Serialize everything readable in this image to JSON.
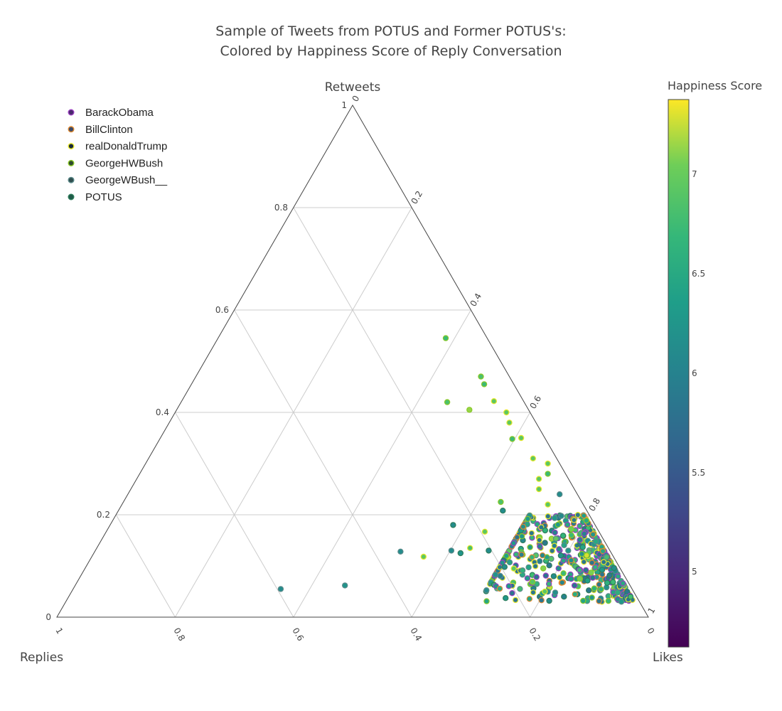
{
  "chart_data": {
    "type": "scatter",
    "subtype": "ternary",
    "title": [
      "Sample of Tweets from POTUS and Former POTUS's:",
      "Colored by Happiness Score of Reply Conversation"
    ],
    "axes": {
      "a": {
        "title": "Retweets",
        "ticks": [
          "0",
          "0.2",
          "0.4",
          "0.6",
          "0.8",
          "1"
        ]
      },
      "b": {
        "title": "Replies",
        "ticks": [
          "0",
          "0.2",
          "0.4",
          "0.6",
          "0.8",
          "1"
        ]
      },
      "c": {
        "title": "Likes",
        "ticks": [
          "0",
          "0.2",
          "0.4",
          "0.6",
          "0.8",
          "1"
        ]
      }
    },
    "colorbar": {
      "title": "Happiness Score",
      "min": 4.6,
      "max": 7.35,
      "colorscale": "Viridis",
      "ticks": [
        "5",
        "5.5",
        "6",
        "6.5",
        "7"
      ]
    },
    "legend_position": "top-left",
    "series": [
      {
        "name": "BarackObama",
        "marker_line": "#9a3fbf",
        "legend_fill": "#4a2a6e",
        "base_score": 6.1
      },
      {
        "name": "BillClinton",
        "marker_line": "#e0892f",
        "legend_fill": "#3a4a6a",
        "base_score": 6.0
      },
      {
        "name": "realDonaldTrump",
        "marker_line": "#e8e82a",
        "legend_fill": "#1a2a3a",
        "base_score": 5.4
      },
      {
        "name": "GeorgeHWBush",
        "marker_line": "#8ac926",
        "legend_fill": "#2e4a2e",
        "base_score": 6.6
      },
      {
        "name": "GeorgeWBush__",
        "marker_line": "#5c8a8a",
        "legend_fill": "#2f4f4f",
        "base_score": 6.3
      },
      {
        "name": "POTUS",
        "marker_line": "#2e7d5b",
        "legend_fill": "#1f5a48",
        "base_score": 6.1
      }
    ],
    "points": [
      {
        "retweets": 0.055,
        "replies": 0.594,
        "likes": 0.351,
        "score": 6.1,
        "series": "GeorgeWBush__"
      },
      {
        "retweets": 0.062,
        "replies": 0.482,
        "likes": 0.456,
        "score": 6.2,
        "series": "GeorgeWBush__"
      },
      {
        "retweets": 0.128,
        "replies": 0.355,
        "likes": 0.517,
        "score": 6.1,
        "series": "GeorgeWBush__"
      },
      {
        "retweets": 0.118,
        "replies": 0.321,
        "likes": 0.561,
        "score": 6.9,
        "series": "realDonaldTrump"
      },
      {
        "retweets": 0.13,
        "replies": 0.268,
        "likes": 0.602,
        "score": 6.1,
        "series": "GeorgeWBush__"
      },
      {
        "retweets": 0.125,
        "replies": 0.255,
        "likes": 0.62,
        "score": 6.2,
        "series": "POTUS"
      },
      {
        "retweets": 0.135,
        "replies": 0.234,
        "likes": 0.631,
        "score": 6.8,
        "series": "realDonaldTrump"
      },
      {
        "retweets": 0.13,
        "replies": 0.205,
        "likes": 0.665,
        "score": 6.1,
        "series": "POTUS"
      },
      {
        "retweets": 0.167,
        "replies": 0.193,
        "likes": 0.64,
        "score": 6.9,
        "series": "realDonaldTrump"
      },
      {
        "retweets": 0.098,
        "replies": 0.194,
        "likes": 0.708,
        "score": 6.1,
        "series": "POTUS"
      },
      {
        "retweets": 0.095,
        "replies": 0.18,
        "likes": 0.725,
        "score": 6.9,
        "series": "realDonaldTrump"
      },
      {
        "retweets": 0.225,
        "replies": 0.137,
        "likes": 0.638,
        "score": 6.8,
        "series": "GeorgeHWBush"
      },
      {
        "retweets": 0.208,
        "replies": 0.142,
        "likes": 0.65,
        "score": 6.1,
        "series": "POTUS"
      },
      {
        "retweets": 0.545,
        "replies": 0.07,
        "likes": 0.385,
        "score": 6.7,
        "series": "GeorgeHWBush"
      },
      {
        "retweets": 0.47,
        "replies": 0.048,
        "likes": 0.482,
        "score": 6.8,
        "series": "GeorgeHWBush"
      },
      {
        "retweets": 0.455,
        "replies": 0.05,
        "likes": 0.495,
        "score": 6.7,
        "series": "GeorgeHWBush"
      },
      {
        "retweets": 0.42,
        "replies": 0.13,
        "likes": 0.45,
        "score": 6.8,
        "series": "GeorgeHWBush"
      },
      {
        "retweets": 0.405,
        "replies": 0.1,
        "likes": 0.495,
        "score": 7.1,
        "series": "GeorgeHWBush"
      },
      {
        "retweets": 0.422,
        "replies": 0.05,
        "likes": 0.528,
        "score": 6.9,
        "series": "realDonaldTrump"
      },
      {
        "retweets": 0.4,
        "replies": 0.04,
        "likes": 0.56,
        "score": 6.9,
        "series": "realDonaldTrump"
      },
      {
        "retweets": 0.38,
        "replies": 0.045,
        "likes": 0.575,
        "score": 6.9,
        "series": "realDonaldTrump"
      },
      {
        "retweets": 0.35,
        "replies": 0.04,
        "likes": 0.61,
        "score": 6.9,
        "series": "realDonaldTrump"
      },
      {
        "retweets": 0.348,
        "replies": 0.056,
        "likes": 0.596,
        "score": 6.7,
        "series": "GeorgeHWBush"
      },
      {
        "retweets": 0.31,
        "replies": 0.04,
        "likes": 0.65,
        "score": 6.9,
        "series": "realDonaldTrump"
      },
      {
        "retweets": 0.3,
        "replies": 0.02,
        "likes": 0.68,
        "score": 6.9,
        "series": "realDonaldTrump"
      },
      {
        "retweets": 0.28,
        "replies": 0.03,
        "likes": 0.69,
        "score": 6.7,
        "series": "GeorgeHWBush"
      },
      {
        "retweets": 0.27,
        "replies": 0.05,
        "likes": 0.68,
        "score": 6.9,
        "series": "realDonaldTrump"
      },
      {
        "retweets": 0.25,
        "replies": 0.06,
        "likes": 0.69,
        "score": 6.9,
        "series": "realDonaldTrump"
      },
      {
        "retweets": 0.24,
        "replies": 0.03,
        "likes": 0.73,
        "score": 6.1,
        "series": "GeorgeWBush__"
      },
      {
        "retweets": 0.22,
        "replies": 0.06,
        "likes": 0.72,
        "score": 6.9,
        "series": "realDonaldTrump"
      },
      {
        "retweets": 0.16,
        "replies": 0.05,
        "likes": 0.79,
        "score": 6.7,
        "series": "GeorgeHWBush"
      },
      {
        "retweets": 0.05,
        "replies": 0.15,
        "likes": 0.8,
        "score": 6.9,
        "series": "realDonaldTrump"
      },
      {
        "retweets": 0.08,
        "replies": 0.12,
        "likes": 0.8,
        "score": 6.1,
        "series": "POTUS"
      },
      {
        "retweets": 0.18,
        "replies": 0.24,
        "likes": 0.58,
        "score": 6.1,
        "series": "POTUS"
      }
    ]
  }
}
